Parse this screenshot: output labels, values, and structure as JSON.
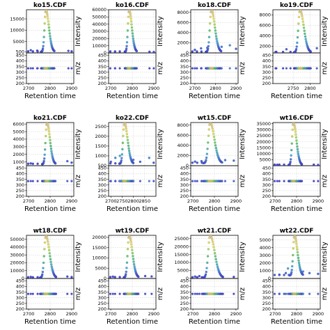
{
  "chart_data": [
    {
      "type": "scatter",
      "title": "ko15.CDF",
      "xlabel": "Retention time",
      "ylabel_top": "Intensity",
      "ylabel_bottom": "m/z",
      "xlim": [
        2690,
        2910
      ],
      "xticks": [
        2700,
        2800,
        2900
      ],
      "ylim_top": [
        0,
        19000
      ],
      "yticks_top": [
        500,
        5000,
        10000,
        15000
      ],
      "ylim_bottom": [
        200,
        470
      ],
      "yticks_bottom": [
        200,
        250,
        300,
        350,
        400,
        450
      ],
      "mz": 334,
      "peak": {
        "rt": 2780,
        "max": 19000,
        "width": 10,
        "baseline": 500
      },
      "side_points": [
        [
          2710,
          1200
        ],
        [
          2740,
          1000
        ],
        [
          2885,
          900
        ],
        [
          2900,
          700
        ]
      ]
    },
    {
      "type": "scatter",
      "title": "ko16.CDF",
      "xlabel": "Retention time",
      "ylabel_top": "Intensity",
      "ylabel_bottom": "m/z",
      "xlim": [
        2690,
        2910
      ],
      "xticks": [
        2700,
        2800,
        2900
      ],
      "ylim_top": [
        0,
        60000
      ],
      "yticks_top": [
        0,
        10000,
        20000,
        30000,
        40000,
        50000,
        60000
      ],
      "ylim_bottom": [
        200,
        470
      ],
      "yticks_bottom": [
        200,
        250,
        300,
        350,
        400,
        450
      ],
      "mz": 334,
      "peak": {
        "rt": 2785,
        "max": 60000,
        "width": 9,
        "baseline": 1500
      },
      "side_points": [
        [
          2720,
          1500
        ],
        [
          2880,
          1600
        ],
        [
          2900,
          1200
        ]
      ]
    },
    {
      "type": "scatter",
      "title": "ko18.CDF",
      "xlabel": "Retention time",
      "ylabel_top": "Intensity",
      "ylabel_bottom": "m/z",
      "xlim": [
        2680,
        2910
      ],
      "xticks": [
        2700,
        2800,
        2900
      ],
      "ylim_top": [
        0,
        8500
      ],
      "yticks_top": [
        0,
        2000,
        4000,
        6000,
        8000
      ],
      "ylim_bottom": [
        200,
        470
      ],
      "yticks_bottom": [
        200,
        250,
        300,
        350,
        400,
        450
      ],
      "mz": 334,
      "peak": {
        "rt": 2780,
        "max": 8500,
        "width": 12,
        "baseline": 200
      },
      "side_points": [
        [
          2700,
          600
        ],
        [
          2730,
          900
        ],
        [
          2760,
          1000
        ],
        [
          2830,
          1200
        ],
        [
          2870,
          1500
        ],
        [
          2900,
          800
        ]
      ]
    },
    {
      "type": "scatter",
      "title": "ko19.CDF",
      "xlabel": "Retention time",
      "ylabel_top": "Intensity",
      "ylabel_bottom": "m/z",
      "xlim": [
        2690,
        2830
      ],
      "xticks": [
        2750,
        2800
      ],
      "ylim_top": [
        700,
        9000
      ],
      "yticks_top": [
        2000,
        4000,
        6000,
        8000
      ],
      "ylim_bottom": [
        200,
        470
      ],
      "yticks_bottom": [
        200,
        250,
        300,
        350,
        400,
        450
      ],
      "mz": 334,
      "peak": {
        "rt": 2770,
        "max": 9000,
        "width": 8,
        "baseline": 800
      },
      "side_points": [
        [
          2700,
          900
        ],
        [
          2730,
          1400
        ],
        [
          2800,
          1100
        ],
        [
          2820,
          1600
        ]
      ]
    },
    {
      "type": "scatter",
      "title": "ko21.CDF",
      "xlabel": "Retention time",
      "ylabel_top": "Intensity",
      "ylabel_bottom": "m/z",
      "xlim": [
        2690,
        2910
      ],
      "xticks": [
        2700,
        2800,
        2900
      ],
      "ylim_top": [
        500,
        6200
      ],
      "yticks_top": [
        1000,
        2000,
        3000,
        4000,
        5000,
        6000
      ],
      "ylim_bottom": [
        200,
        470
      ],
      "yticks_bottom": [
        200,
        250,
        300,
        350,
        400,
        450
      ],
      "mz": 334,
      "peak": {
        "rt": 2785,
        "max": 6200,
        "width": 10,
        "baseline": 700
      },
      "side_points": [
        [
          2710,
          800
        ],
        [
          2880,
          1100
        ],
        [
          2900,
          900
        ]
      ]
    },
    {
      "type": "scatter",
      "title": "ko22.CDF",
      "xlabel": "Retention time",
      "ylabel_top": "Intensity",
      "ylabel_bottom": "m/z",
      "xlim": [
        2690,
        2900
      ],
      "xticks": [
        2700,
        2750,
        2800,
        2850
      ],
      "ylim_top": [
        500,
        2700
      ],
      "yticks_top": [
        500,
        1000,
        1500,
        2000,
        2500
      ],
      "ylim_bottom": [
        200,
        470
      ],
      "yticks_bottom": [
        200,
        250,
        300,
        350,
        400,
        450
      ],
      "mz": 334,
      "peak": {
        "rt": 2760,
        "max": 2700,
        "width": 10,
        "baseline": 600
      },
      "side_points": [
        [
          2700,
          700
        ],
        [
          2720,
          900
        ],
        [
          2740,
          1000
        ],
        [
          2800,
          800
        ],
        [
          2830,
          700
        ],
        [
          2870,
          900
        ],
        [
          2890,
          650
        ]
      ]
    },
    {
      "type": "scatter",
      "title": "wt15.CDF",
      "xlabel": "Retention time",
      "ylabel_top": "Intensity",
      "ylabel_bottom": "m/z",
      "xlim": [
        2690,
        2910
      ],
      "xticks": [
        2700,
        2800,
        2900
      ],
      "ylim_top": [
        0,
        8500
      ],
      "yticks_top": [
        0,
        2000,
        4000,
        6000,
        8000
      ],
      "ylim_bottom": [
        200,
        470
      ],
      "yticks_bottom": [
        200,
        250,
        300,
        350,
        400,
        450
      ],
      "mz": 334,
      "peak": {
        "rt": 2780,
        "max": 8500,
        "width": 14,
        "baseline": 500
      },
      "side_points": [
        [
          2710,
          800
        ],
        [
          2740,
          900
        ],
        [
          2850,
          1100
        ],
        [
          2890,
          1000
        ]
      ]
    },
    {
      "type": "scatter",
      "title": "wt16.CDF",
      "xlabel": "Retention time",
      "ylabel_top": "Intensity",
      "ylabel_bottom": "m/z",
      "xlim": [
        2690,
        2910
      ],
      "xticks": [
        2700,
        2800,
        2900
      ],
      "ylim_top": [
        0,
        36000
      ],
      "yticks_top": [
        5000,
        10000,
        15000,
        20000,
        25000,
        30000,
        35000
      ],
      "ylim_bottom": [
        200,
        470
      ],
      "yticks_bottom": [
        200,
        250,
        300,
        350,
        400,
        450
      ],
      "mz": 334,
      "peak": {
        "rt": 2785,
        "max": 36000,
        "width": 10,
        "baseline": 500
      },
      "side_points": [
        [
          2710,
          800
        ],
        [
          2880,
          900
        ],
        [
          2900,
          700
        ]
      ]
    },
    {
      "type": "scatter",
      "title": "wt18.CDF",
      "xlabel": "Retention time",
      "ylabel_top": "Intensity",
      "ylabel_bottom": "m/z",
      "xlim": [
        2690,
        2910
      ],
      "xticks": [
        2700,
        2800,
        2900
      ],
      "ylim_top": [
        0,
        55000
      ],
      "yticks_top": [
        0,
        10000,
        20000,
        30000,
        40000,
        50000
      ],
      "ylim_bottom": [
        200,
        470
      ],
      "yticks_bottom": [
        200,
        250,
        300,
        350,
        400,
        450
      ],
      "mz": 334,
      "peak": {
        "rt": 2780,
        "max": 55000,
        "width": 12,
        "baseline": 1000
      },
      "side_points": [
        [
          2710,
          2000
        ],
        [
          2880,
          2500
        ],
        [
          2900,
          1800
        ]
      ]
    },
    {
      "type": "scatter",
      "title": "wt19.CDF",
      "xlabel": "Retention time",
      "ylabel_top": "Intensity",
      "ylabel_bottom": "m/z",
      "xlim": [
        2690,
        2910
      ],
      "xticks": [
        2700,
        2800,
        2900
      ],
      "ylim_top": [
        0,
        21000
      ],
      "yticks_top": [
        0,
        5000,
        10000,
        15000,
        20000
      ],
      "ylim_bottom": [
        200,
        470
      ],
      "yticks_bottom": [
        200,
        250,
        300,
        350,
        400,
        450
      ],
      "mz": 334,
      "peak": {
        "rt": 2785,
        "max": 21000,
        "width": 11,
        "baseline": 500
      },
      "side_points": [
        [
          2710,
          900
        ],
        [
          2860,
          1200
        ],
        [
          2890,
          1000
        ]
      ]
    },
    {
      "type": "scatter",
      "title": "wt21.CDF",
      "xlabel": "Retention time",
      "ylabel_top": "Intensity",
      "ylabel_bottom": "m/z",
      "xlim": [
        2690,
        2910
      ],
      "xticks": [
        2700,
        2800,
        2900
      ],
      "ylim_top": [
        0,
        27000
      ],
      "yticks_top": [
        0,
        5000,
        10000,
        15000,
        20000,
        25000
      ],
      "ylim_bottom": [
        200,
        470
      ],
      "yticks_bottom": [
        200,
        250,
        300,
        350,
        400,
        450
      ],
      "mz": 334,
      "peak": {
        "rt": 2780,
        "max": 27000,
        "width": 15,
        "baseline": 500
      },
      "side_points": [
        [
          2710,
          1200
        ],
        [
          2730,
          1500
        ],
        [
          2890,
          1000
        ]
      ]
    },
    {
      "type": "scatter",
      "title": "wt22.CDF",
      "xlabel": "Retention time",
      "ylabel_top": "Intensity",
      "ylabel_bottom": "m/z",
      "xlim": [
        2690,
        2910
      ],
      "xticks": [
        2700,
        2800,
        2900
      ],
      "ylim_top": [
        0,
        5600
      ],
      "yticks_top": [
        0,
        1000,
        2000,
        3000,
        4000,
        5000
      ],
      "ylim_bottom": [
        200,
        470
      ],
      "yticks_bottom": [
        200,
        250,
        300,
        350,
        400,
        450
      ],
      "mz": 334,
      "peak": {
        "rt": 2790,
        "max": 5600,
        "width": 10,
        "baseline": 400
      },
      "side_points": [
        [
          2720,
          500
        ],
        [
          2750,
          700
        ],
        [
          2760,
          1300
        ],
        [
          2830,
          900
        ],
        [
          2860,
          700
        ],
        [
          2900,
          600
        ]
      ]
    }
  ]
}
